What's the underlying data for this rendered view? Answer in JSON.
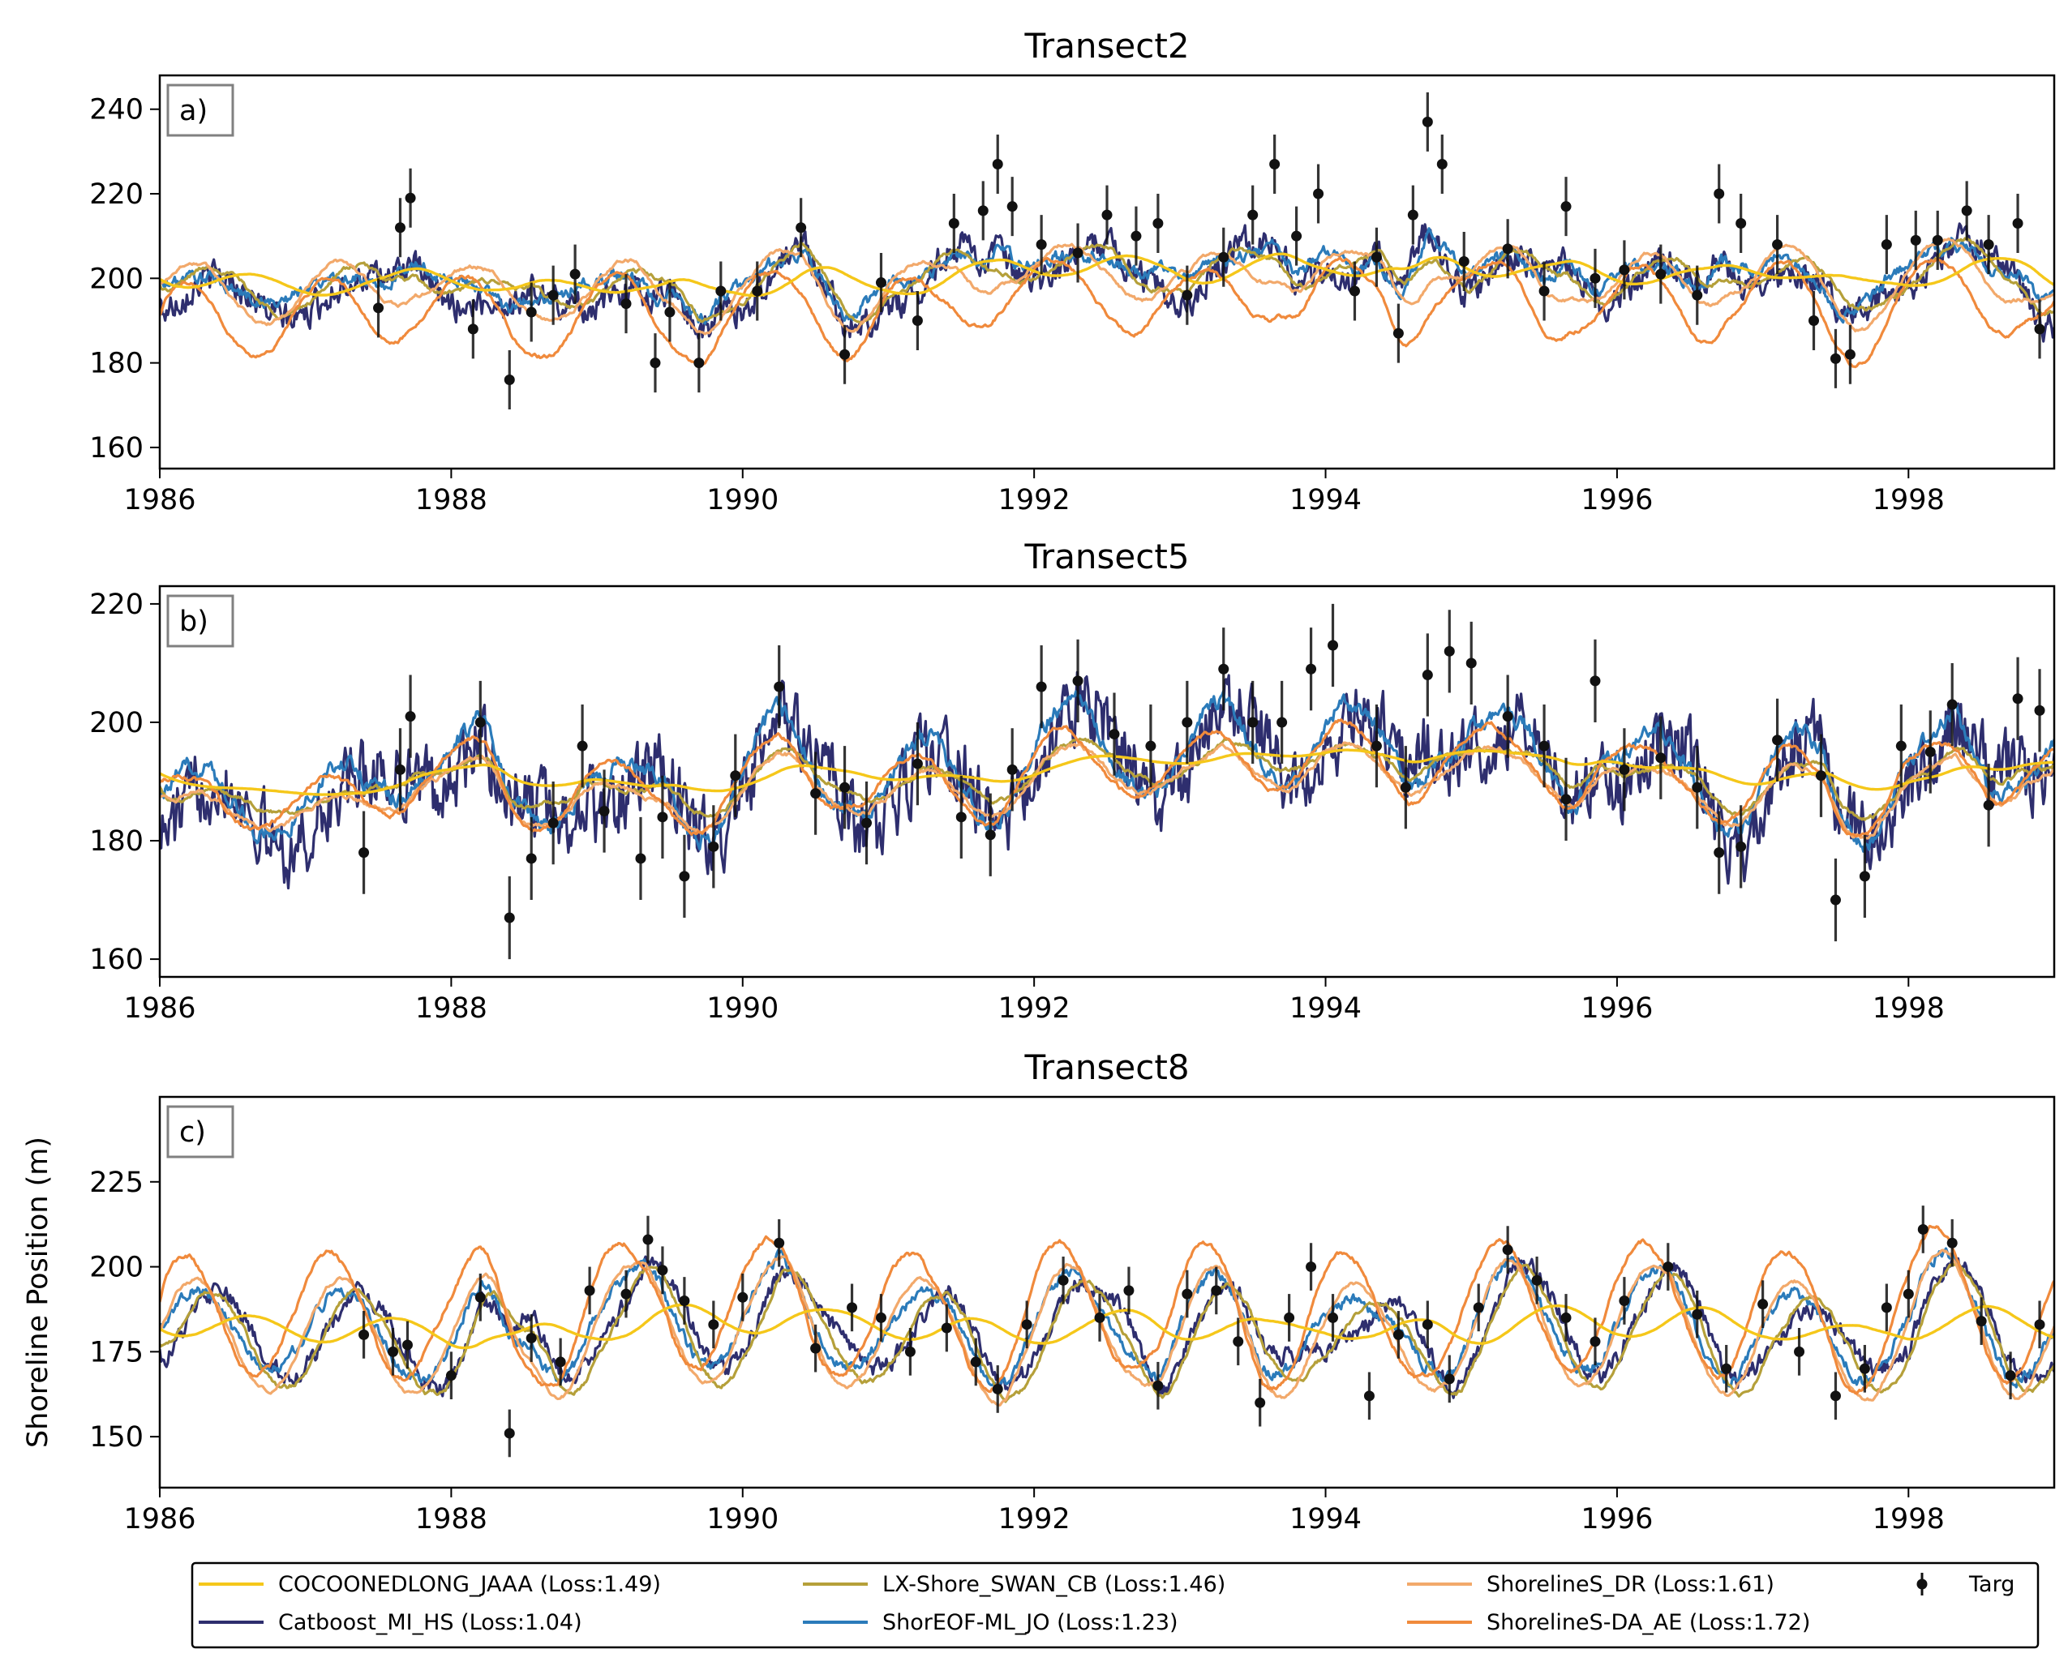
{
  "chart_data": [
    {
      "type": "line",
      "title": "Transect2",
      "panel_label": "a)",
      "ylabel": "",
      "xlim": [
        1986,
        1999
      ],
      "ylim": [
        155,
        248
      ],
      "xticks": [
        1986,
        1988,
        1990,
        1992,
        1994,
        1996,
        1998
      ],
      "yticks": [
        160,
        180,
        200,
        220,
        240
      ],
      "grid": false,
      "model_params": {
        "COCOONEDLONG_JAAA": {
          "base": 200,
          "amp": 5,
          "noise": 1.2,
          "smooth": 0.02
        },
        "Catboost_MI_HS": {
          "base": 197,
          "amp": 5,
          "noise": 6,
          "smooth": 0.5
        },
        "LX-Shore_SWAN_CB": {
          "base": 199,
          "amp": 6,
          "noise": 3,
          "smooth": 0.15
        },
        "ShorEOF-ML_JO": {
          "base": 200,
          "amp": 3,
          "noise": 3.5,
          "smooth": 0.35
        },
        "ShorelineS_DR": {
          "base": 198,
          "amp": 8,
          "noise": 3,
          "smooth": 0.12
        },
        "ShorelineS-DA_AE": {
          "base": 190,
          "amp": 10,
          "noise": 3,
          "smooth": 0.12
        }
      },
      "obs": {
        "x": [
          1987.5,
          1987.65,
          1987.72,
          1988.15,
          1988.4,
          1988.55,
          1988.7,
          1988.85,
          1989.2,
          1989.4,
          1989.5,
          1989.7,
          1989.85,
          1990.1,
          1990.4,
          1990.7,
          1990.95,
          1991.2,
          1991.45,
          1991.65,
          1991.75,
          1991.85,
          1992.05,
          1992.3,
          1992.5,
          1992.7,
          1992.85,
          1993.05,
          1993.3,
          1993.5,
          1993.65,
          1993.8,
          1993.95,
          1994.2,
          1994.35,
          1994.5,
          1994.6,
          1994.7,
          1994.8,
          1994.95,
          1995.25,
          1995.5,
          1995.65,
          1995.85,
          1996.05,
          1996.3,
          1996.55,
          1996.7,
          1996.85,
          1997.1,
          1997.35,
          1997.5,
          1997.6,
          1997.85,
          1998.05,
          1998.2,
          1998.4,
          1998.55,
          1998.75,
          1998.9
        ],
        "y": [
          193,
          212,
          219,
          188,
          176,
          192,
          196,
          201,
          194,
          180,
          192,
          180,
          197,
          197,
          212,
          182,
          199,
          190,
          213,
          216,
          227,
          217,
          208,
          206,
          215,
          210,
          213,
          196,
          205,
          215,
          227,
          210,
          220,
          197,
          205,
          187,
          215,
          237,
          227,
          204,
          207,
          197,
          217,
          200,
          202,
          201,
          196,
          220,
          213,
          208,
          190,
          181,
          182,
          208,
          209,
          209,
          216,
          208,
          213,
          188
        ],
        "err": 7
      }
    },
    {
      "type": "line",
      "title": "Transect5",
      "panel_label": "b)",
      "ylabel": "",
      "xlim": [
        1986,
        1999
      ],
      "ylim": [
        157,
        223
      ],
      "xticks": [
        1986,
        1988,
        1990,
        1992,
        1994,
        1996,
        1998
      ],
      "yticks": [
        160,
        180,
        200,
        220
      ],
      "grid": false,
      "model_params": {
        "COCOONEDLONG_JAAA": {
          "base": 191.5,
          "amp": 0.6,
          "noise": 0.3,
          "smooth": 0.02
        },
        "Catboost_MI_HS": {
          "base": 190,
          "amp": 6,
          "noise": 9,
          "smooth": 0.6
        },
        "LX-Shore_SWAN_CB": {
          "base": 190,
          "amp": 2,
          "noise": 2,
          "smooth": 0.15
        },
        "ShorEOF-ML_JO": {
          "base": 192,
          "amp": 6,
          "noise": 3.5,
          "smooth": 0.35
        },
        "ShorelineS_DR": {
          "base": 188,
          "amp": 3,
          "noise": 2.5,
          "smooth": 0.12
        },
        "ShorelineS-DA_AE": {
          "base": 190,
          "amp": 5,
          "noise": 2.5,
          "smooth": 0.12
        }
      },
      "obs": {
        "x": [
          1987.4,
          1987.65,
          1987.72,
          1988.2,
          1988.4,
          1988.55,
          1988.7,
          1988.9,
          1989.05,
          1989.3,
          1989.45,
          1989.6,
          1989.8,
          1989.95,
          1990.25,
          1990.5,
          1990.7,
          1990.85,
          1991.2,
          1991.5,
          1991.7,
          1991.85,
          1992.05,
          1992.3,
          1992.55,
          1992.8,
          1993.05,
          1993.3,
          1993.5,
          1993.7,
          1993.9,
          1994.05,
          1994.35,
          1994.55,
          1994.7,
          1994.85,
          1995.0,
          1995.25,
          1995.5,
          1995.65,
          1995.85,
          1996.05,
          1996.3,
          1996.55,
          1996.7,
          1996.85,
          1997.1,
          1997.4,
          1997.5,
          1997.7,
          1997.95,
          1998.15,
          1998.3,
          1998.55,
          1998.75,
          1998.9
        ],
        "y": [
          178,
          192,
          201,
          200,
          167,
          177,
          183,
          196,
          185,
          177,
          184,
          174,
          179,
          191,
          206,
          188,
          189,
          183,
          193,
          184,
          181,
          192,
          206,
          207,
          198,
          196,
          200,
          209,
          200,
          200,
          209,
          213,
          196,
          189,
          208,
          212,
          210,
          201,
          196,
          187,
          207,
          192,
          194,
          189,
          178,
          179,
          197,
          191,
          170,
          174,
          196,
          195,
          203,
          186,
          204,
          202
        ],
        "err": 7
      }
    },
    {
      "type": "line",
      "title": "Transect8",
      "panel_label": "c)",
      "ylabel": "Shoreline Position (m)",
      "xlim": [
        1986,
        1999
      ],
      "ylim": [
        135,
        250
      ],
      "xticks": [
        1986,
        1988,
        1990,
        1992,
        1994,
        1996,
        1998
      ],
      "yticks": [
        150,
        175,
        200,
        225
      ],
      "grid": false,
      "model_params": {
        "COCOONEDLONG_JAAA": {
          "base": 182,
          "amp": 8,
          "noise": 1.5,
          "smooth": 0.02
        },
        "Catboost_MI_HS": {
          "base": 180,
          "amp": 12,
          "noise": 5,
          "smooth": 0.45
        },
        "LX-Shore_SWAN_CB": {
          "base": 178,
          "amp": 15,
          "noise": 4,
          "smooth": 0.15
        },
        "ShorEOF-ML_JO": {
          "base": 182,
          "amp": 12,
          "noise": 4,
          "smooth": 0.35
        },
        "ShorelineS_DR": {
          "base": 180,
          "amp": 18,
          "noise": 4,
          "smooth": 0.12
        },
        "ShorelineS-DA_AE": {
          "base": 188,
          "amp": 20,
          "noise": 5,
          "smooth": 0.12
        }
      },
      "obs": {
        "x": [
          1987.4,
          1987.6,
          1987.7,
          1988.0,
          1988.2,
          1988.4,
          1988.55,
          1988.75,
          1988.95,
          1989.2,
          1989.35,
          1989.45,
          1989.6,
          1989.8,
          1990.0,
          1990.25,
          1990.5,
          1990.75,
          1990.95,
          1991.15,
          1991.4,
          1991.6,
          1991.75,
          1991.95,
          1992.2,
          1992.45,
          1992.65,
          1992.85,
          1993.05,
          1993.25,
          1993.4,
          1993.55,
          1993.75,
          1993.9,
          1994.05,
          1994.3,
          1994.5,
          1994.7,
          1994.85,
          1995.05,
          1995.25,
          1995.45,
          1995.65,
          1995.85,
          1996.05,
          1996.35,
          1996.55,
          1996.75,
          1997.0,
          1997.25,
          1997.5,
          1997.7,
          1997.85,
          1998.0,
          1998.1,
          1998.3,
          1998.5,
          1998.7,
          1998.9
        ],
        "y": [
          180,
          175,
          177,
          168,
          191,
          151,
          179,
          172,
          193,
          192,
          208,
          199,
          190,
          183,
          191,
          207,
          176,
          188,
          185,
          175,
          182,
          172,
          164,
          183,
          196,
          185,
          193,
          165,
          192,
          193,
          178,
          160,
          185,
          200,
          185,
          162,
          180,
          183,
          167,
          188,
          205,
          196,
          185,
          178,
          190,
          200,
          186,
          170,
          189,
          175,
          162,
          170,
          188,
          192,
          211,
          207,
          184,
          168,
          183
        ],
        "err": 7
      }
    }
  ],
  "legend": {
    "placement": "bottom",
    "entries": [
      {
        "label": "COCOONEDLONG_JAAA (Loss:1.49)",
        "color": "#f5c71a",
        "kind": "line"
      },
      {
        "label": "Catboost_MI_HS (Loss:1.04)",
        "color": "#2e2e6e",
        "kind": "line"
      },
      {
        "label": "LX-Shore_SWAN_CB (Loss:1.46)",
        "color": "#b5a03a",
        "kind": "line"
      },
      {
        "label": "ShorEOF-ML_JO (Loss:1.23)",
        "color": "#2b7bba",
        "kind": "line"
      },
      {
        "label": "ShorelineS_DR (Loss:1.61)",
        "color": "#f2a96b",
        "kind": "line"
      },
      {
        "label": "ShorelineS-DA_AE (Loss:1.72)",
        "color": "#f08a3c",
        "kind": "line"
      },
      {
        "label": "Targ",
        "color": "#111111",
        "kind": "errorbar"
      }
    ]
  }
}
